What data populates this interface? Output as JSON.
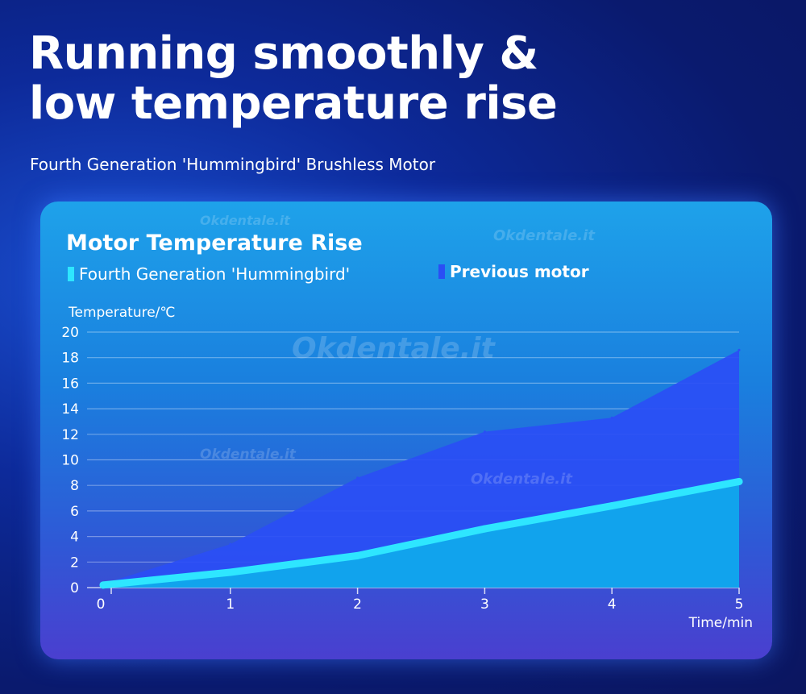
{
  "header": {
    "title_line1": "Running smoothly &",
    "title_line2": "low temperature rise",
    "subtitle": "Fourth Generation 'Hummingbird' Brushless Motor"
  },
  "watermark": "Okdentale.it",
  "chart_data": {
    "type": "area",
    "title": "Motor Temperature Rise",
    "xlabel": "Time/min",
    "ylabel": "Temperature/℃",
    "x": [
      0,
      1,
      2,
      3,
      4,
      5
    ],
    "xlim": [
      0,
      5
    ],
    "ylim": [
      0,
      20
    ],
    "xticks": [
      0,
      1,
      2,
      3,
      4,
      5
    ],
    "yticks": [
      0,
      2,
      4,
      6,
      8,
      10,
      12,
      14,
      16,
      18,
      20
    ],
    "grid": true,
    "legend_position": "top-left",
    "series": [
      {
        "name": "Previous motor",
        "values": [
          0.3,
          3.4,
          8.6,
          12.2,
          13.3,
          18.6
        ],
        "color": "#2a4ef5"
      },
      {
        "name": "Fourth Generation 'Hummingbird'",
        "values": [
          0.2,
          1.2,
          2.5,
          4.6,
          6.4,
          8.3
        ],
        "color": "#2ee6ff"
      }
    ]
  }
}
